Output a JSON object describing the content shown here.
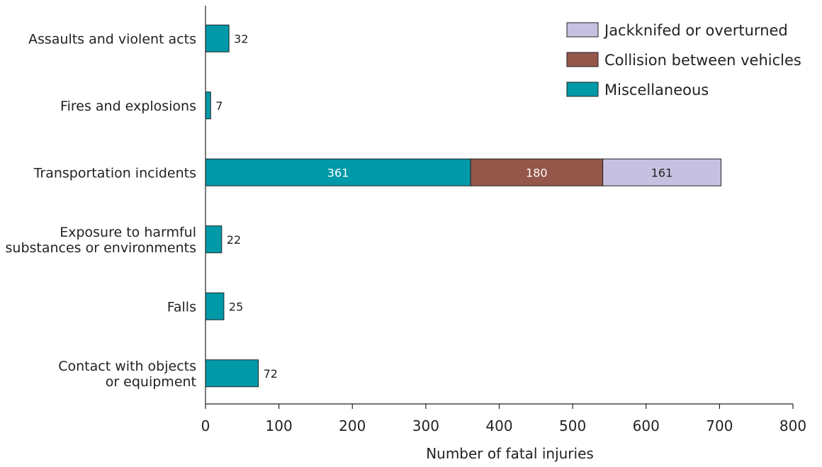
{
  "chart_data": {
    "type": "bar",
    "orientation": "horizontal",
    "stacked": true,
    "xlabel": "Number of fatal injuries",
    "ylabel": "",
    "xlim": [
      0,
      800
    ],
    "xticks": [
      0,
      100,
      200,
      300,
      400,
      500,
      600,
      700,
      800
    ],
    "grid": false,
    "legend_position": "top-right",
    "categories": [
      [
        "Assaults and violent acts"
      ],
      [
        "Fires and explosions"
      ],
      [
        "Transportation incidents"
      ],
      [
        "Exposure to harmful",
        "substances or environments"
      ],
      [
        "Falls"
      ],
      [
        "Contact with objects",
        "or equipment"
      ]
    ],
    "series": [
      {
        "name": "Miscellaneous",
        "color": "#0099a8",
        "label_color": "#ffffff",
        "values": [
          32,
          7,
          361,
          22,
          25,
          72
        ]
      },
      {
        "name": "Collision between vehicles",
        "color": "#94574a",
        "label_color": "#ffffff",
        "values": [
          0,
          0,
          180,
          0,
          0,
          0
        ]
      },
      {
        "name": "Jackknifed or overturned",
        "color": "#c6c1e0",
        "label_color": "#222222",
        "values": [
          0,
          0,
          161,
          0,
          0,
          0
        ]
      }
    ],
    "legend_order": [
      2,
      1,
      0
    ]
  }
}
